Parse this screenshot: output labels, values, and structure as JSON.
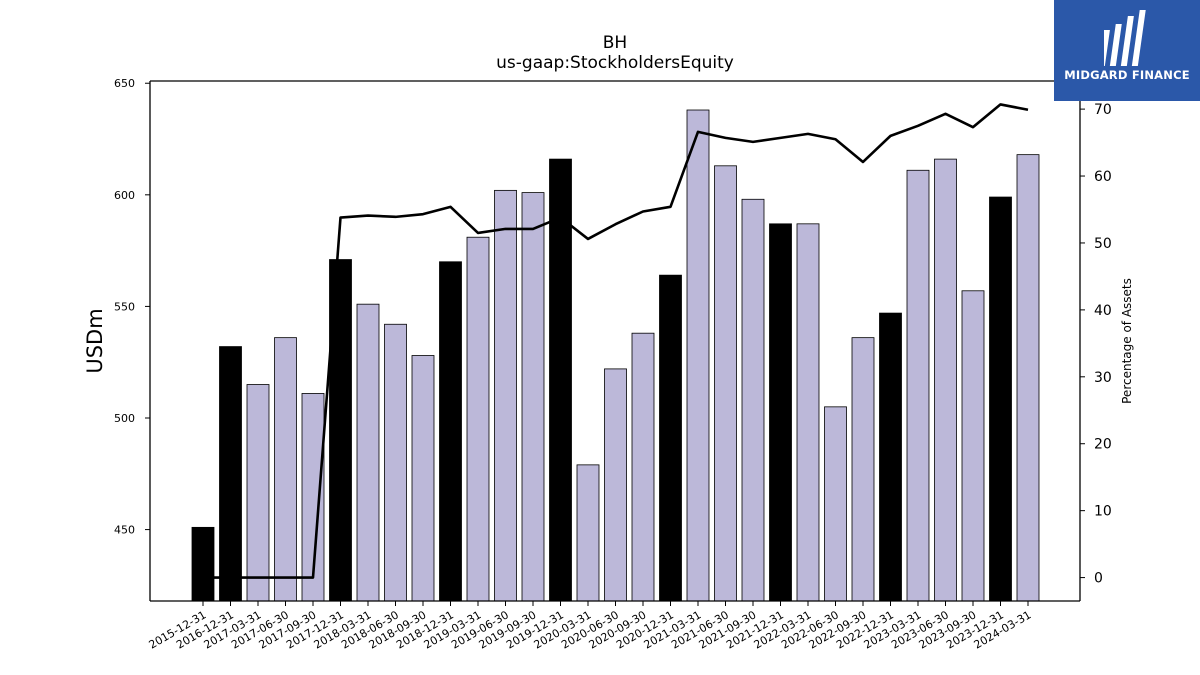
{
  "chart_data": {
    "type": "bar",
    "title": "BH",
    "subtitle": "us-gaap:StockholdersEquity",
    "ylabel": "USDm",
    "y2label": "Percentage of Assets",
    "ylim": [
      418,
      651
    ],
    "y2lim": [
      -3.5,
      74.2
    ],
    "yticks": [
      450,
      500,
      550,
      600,
      650
    ],
    "y2ticks": [
      0,
      10,
      20,
      30,
      40,
      50,
      60,
      70
    ],
    "grid": false,
    "categories": [
      "2015-12-31",
      "2016-12-31",
      "2017-03-31",
      "2017-06-30",
      "2017-09-30",
      "2017-12-31",
      "2018-03-31",
      "2018-06-30",
      "2018-09-30",
      "2018-12-31",
      "2019-03-31",
      "2019-06-30",
      "2019-09-30",
      "2019-12-31",
      "2020-03-31",
      "2020-06-30",
      "2020-09-30",
      "2020-12-31",
      "2021-03-31",
      "2021-06-30",
      "2021-09-30",
      "2021-12-31",
      "2022-03-31",
      "2022-06-30",
      "2022-09-30",
      "2022-12-31",
      "2023-03-31",
      "2023-06-30",
      "2023-09-30",
      "2023-12-31",
      "2024-03-31"
    ],
    "series": [
      {
        "type": "bar",
        "axis": "left",
        "values": [
          451,
          532,
          515,
          536,
          511,
          571,
          551,
          542,
          528,
          570,
          581,
          602,
          601,
          616,
          479,
          522,
          538,
          564,
          638,
          613,
          598,
          587,
          587,
          505,
          536,
          547,
          611,
          616,
          557,
          599,
          618
        ],
        "colors": [
          "#000000",
          "#000000",
          "#bcb8d9",
          "#bcb8d9",
          "#bcb8d9",
          "#000000",
          "#bcb8d9",
          "#bcb8d9",
          "#bcb8d9",
          "#000000",
          "#bcb8d9",
          "#bcb8d9",
          "#bcb8d9",
          "#000000",
          "#bcb8d9",
          "#bcb8d9",
          "#bcb8d9",
          "#000000",
          "#bcb8d9",
          "#bcb8d9",
          "#bcb8d9",
          "#000000",
          "#bcb8d9",
          "#bcb8d9",
          "#bcb8d9",
          "#000000",
          "#bcb8d9",
          "#bcb8d9",
          "#bcb8d9",
          "#000000",
          "#bcb8d9"
        ]
      },
      {
        "type": "line",
        "axis": "right",
        "color": "#000000",
        "values": [
          0,
          0,
          0,
          0,
          0,
          53.8,
          54.1,
          53.9,
          54.3,
          55.4,
          51.5,
          52.1,
          52.1,
          53.8,
          50.6,
          52.8,
          54.7,
          55.4,
          66.6,
          65.7,
          65.1,
          65.7,
          66.3,
          65.5,
          62.1,
          66.0,
          67.5,
          69.3,
          67.3,
          70.7,
          69.9
        ]
      }
    ]
  },
  "logo": {
    "text": "MIDGARD FINANCE",
    "bg_color": "#2b58a9"
  }
}
